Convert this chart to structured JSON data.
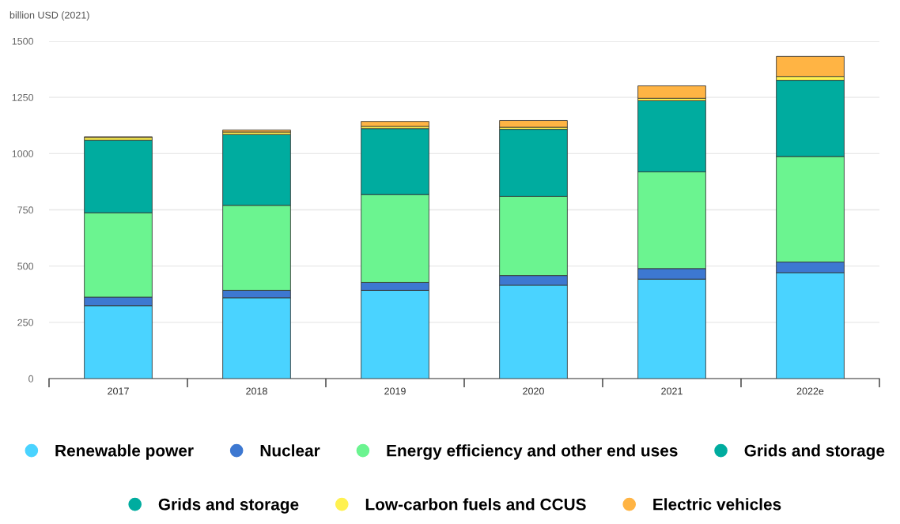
{
  "chart_data": {
    "type": "bar",
    "stacked": true,
    "ylabel": "billion USD (2021)",
    "categories": [
      "2017",
      "2018",
      "2019",
      "2020",
      "2021",
      "2022e"
    ],
    "series": [
      {
        "name": "Renewable power",
        "color": "#4ad3ff",
        "values": [
          324,
          359,
          392,
          415,
          442,
          471
        ]
      },
      {
        "name": "Nuclear",
        "color": "#3d78d1",
        "values": [
          38,
          33,
          35,
          43,
          47,
          47
        ]
      },
      {
        "name": "Energy efficiency and other end uses",
        "color": "#6bf490",
        "values": [
          375,
          378,
          391,
          352,
          430,
          469
        ]
      },
      {
        "name": "Grids and storage",
        "color": "#00ac9f",
        "values": [
          323,
          315,
          293,
          298,
          316,
          339
        ]
      },
      {
        "name": "Grids and storage",
        "color": "#00ac9f",
        "values": [
          null,
          null,
          null,
          null,
          null,
          null
        ]
      },
      {
        "name": "Low-carbon fuels and CCUS",
        "color": "#fff150",
        "values": [
          12,
          11,
          10,
          9,
          11,
          17
        ]
      },
      {
        "name": "Electric vehicles",
        "color": "#ffb444",
        "values": [
          3,
          9,
          22,
          30,
          55,
          89
        ]
      }
    ],
    "ylim": [
      0,
      1500
    ],
    "yticks": [
      0,
      250,
      500,
      750,
      1000,
      1250,
      1500
    ],
    "grid": "y",
    "legend": "bottom"
  }
}
